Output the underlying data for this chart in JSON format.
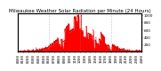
{
  "title": "Milwaukee Weather Solar Radiation per Minute (24 Hours)",
  "bar_color": "#ff0000",
  "edge_color": "#dd0000",
  "background_color": "#ffffff",
  "grid_color": "#888888",
  "num_points": 1440,
  "peak_minute": 740,
  "peak_value": 1000,
  "ylim": [
    0,
    1050
  ],
  "xlim": [
    0,
    1440
  ],
  "yticks": [
    200,
    400,
    600,
    800,
    1000
  ],
  "vlines": [
    360,
    720,
    1080
  ],
  "title_fontsize": 4.0,
  "tick_fontsize": 3.0
}
